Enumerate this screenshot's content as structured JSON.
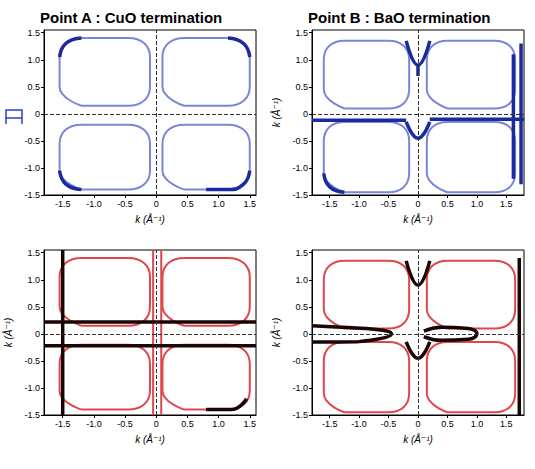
{
  "chart_data": [
    {
      "type": "line",
      "title": "Point A : CuO termination",
      "xlabel": "k (Å⁻¹)",
      "xlim": [
        -1.8,
        1.6
      ],
      "ylim": [
        -1.5,
        1.55
      ],
      "xticks": [
        -1.5,
        {
          "value": -1,
          "label": "-1.0"
        },
        -0.5,
        0,
        0.5,
        {
          "value": 1,
          "label": "1.0"
        },
        1.5
      ],
      "yticks": [
        -1.5,
        {
          "value": -1,
          "label": "-1.0"
        },
        -0.5,
        0,
        0.5,
        {
          "value": 1,
          "label": "1.0"
        },
        1.5
      ],
      "reference_lines": {
        "x": [
          0
        ],
        "y": [
          0
        ]
      },
      "series": [
        {
          "color": "#7a86d8",
          "x": [
            -1.2,
            -0.45,
            -0.1,
            -0.1,
            -0.45,
            -1.2,
            -1.55,
            -1.55,
            -1.2,
            null,
            0.45,
            1.15,
            1.5,
            1.5,
            1.15,
            0.45,
            0.1,
            0.1,
            0.45,
            null,
            -1.2,
            -0.45,
            -0.1,
            -0.1,
            -0.45,
            -1.2,
            -1.55,
            -1.55,
            -1.2,
            null,
            0.45,
            1.15,
            1.5,
            1.5,
            1.15,
            0.45,
            0.1,
            0.1,
            0.45
          ],
          "values": [
            0.15,
            0.15,
            0.5,
            1.05,
            1.4,
            1.4,
            1.05,
            0.5,
            0.15,
            null,
            0.15,
            0.15,
            0.5,
            1.05,
            1.4,
            1.4,
            1.05,
            0.5,
            0.15,
            null,
            -1.4,
            -1.4,
            -1.05,
            -0.55,
            -0.2,
            -0.2,
            -0.55,
            -1.05,
            -1.4,
            null,
            -1.4,
            -1.4,
            -1.05,
            -0.55,
            -0.2,
            -0.2,
            -0.55,
            -1.05,
            -1.4
          ]
        },
        {
          "color": "#1b2a9e",
          "x": [
            -1.2,
            -1.45,
            -1.55,
            null,
            -1.55,
            -1.45,
            -1.2,
            null,
            1.15,
            1.4,
            1.5,
            null,
            0.8,
            1.15,
            1.4,
            1.5
          ],
          "values": [
            1.4,
            1.3,
            1.05,
            null,
            -1.05,
            -1.3,
            -1.4,
            null,
            1.4,
            1.3,
            1.05,
            null,
            -1.4,
            -1.4,
            -1.3,
            -1.05
          ]
        }
      ]
    },
    {
      "type": "line",
      "title": "Point B : BaO termination",
      "xlabel": "k (Å⁻¹)",
      "ylabel": "k (Å⁻¹)",
      "xlim": [
        -1.8,
        1.8
      ],
      "ylim": [
        -1.5,
        1.55
      ],
      "xticks": [
        -1.5,
        {
          "value": -1,
          "label": "-1.0"
        },
        -0.5,
        0,
        0.5,
        {
          "value": 1,
          "label": "1.0"
        },
        1.5
      ],
      "yticks": [
        -1.5,
        {
          "value": -1,
          "label": "-1.0"
        },
        -0.5,
        0,
        0.5,
        {
          "value": 1,
          "label": "1.0"
        },
        1.5
      ],
      "reference_lines": {
        "x": [
          0
        ],
        "y": [
          0
        ]
      },
      "series": [
        {
          "color": "#7a86d8",
          "x": [
            -1.25,
            -0.5,
            -0.15,
            -0.15,
            -0.5,
            -1.25,
            -1.6,
            -1.6,
            -1.25,
            null,
            0.5,
            1.3,
            1.65,
            1.65,
            1.3,
            0.5,
            0.15,
            0.15,
            0.5,
            null,
            -1.25,
            -0.5,
            -0.15,
            -0.15,
            -0.5,
            -1.25,
            -1.6,
            -1.6,
            -1.25,
            null,
            0.5,
            1.3,
            1.65,
            1.65,
            1.3,
            0.5,
            0.15,
            0.15,
            0.5
          ],
          "values": [
            0.1,
            0.1,
            0.45,
            1.0,
            1.35,
            1.35,
            1.0,
            0.45,
            0.1,
            null,
            0.1,
            0.1,
            0.45,
            1.0,
            1.35,
            1.35,
            1.0,
            0.45,
            0.1,
            null,
            -1.45,
            -1.45,
            -1.1,
            -0.5,
            -0.15,
            -0.15,
            -0.5,
            -1.1,
            -1.45,
            null,
            -1.45,
            -1.45,
            -1.1,
            -0.5,
            -0.15,
            -0.15,
            -0.5,
            -1.1,
            -1.45
          ]
        },
        {
          "color": "#1b2a9e",
          "x": [
            -1.8,
            -0.2,
            null,
            0.2,
            1.8,
            null,
            -0.2,
            0,
            0.2,
            null,
            0,
            0,
            null,
            -0.2,
            0,
            0.2,
            null,
            1.62,
            1.62,
            null,
            1.75,
            1.75,
            null,
            -1.6,
            -1.5,
            -1.25
          ],
          "values": [
            -0.12,
            -0.12,
            null,
            -0.1,
            -0.1,
            null,
            1.35,
            0.9,
            1.35,
            null,
            0.9,
            0.7,
            null,
            -0.15,
            -0.45,
            -0.15,
            null,
            -1.2,
            1.1,
            null,
            -1.3,
            1.3,
            null,
            -1.1,
            -1.35,
            -1.45
          ]
        }
      ]
    },
    {
      "type": "line",
      "xlabel": "k (Å⁻¹)",
      "ylabel": "k (Å⁻¹)",
      "xlim": [
        -1.8,
        1.6
      ],
      "ylim": [
        -1.5,
        1.55
      ],
      "xticks": [
        -1.5,
        {
          "value": -1,
          "label": "-1.0"
        },
        -0.5,
        0,
        0.5,
        {
          "value": 1,
          "label": "1.0"
        },
        1.5
      ],
      "yticks": [
        -1.5,
        {
          "value": -1,
          "label": "-1.0"
        },
        -0.5,
        0,
        0.5,
        {
          "value": 1,
          "label": "1.0"
        },
        1.5
      ],
      "reference_lines": {
        "x": [
          0
        ],
        "y": [
          0
        ]
      },
      "series": [
        {
          "color": "#e0474c",
          "x": [
            -1.2,
            -0.45,
            -0.1,
            -0.1,
            -0.45,
            -1.2,
            -1.55,
            -1.55,
            -1.2,
            null,
            0.45,
            1.15,
            1.5,
            1.5,
            1.15,
            0.45,
            0.1,
            0.1,
            0.45,
            null,
            -1.2,
            -0.45,
            -0.1,
            -0.1,
            -0.45,
            -1.2,
            -1.55,
            -1.55,
            -1.2,
            null,
            0.45,
            1.15,
            1.5,
            1.5,
            1.15,
            0.45,
            0.1,
            0.1,
            0.45,
            null,
            -0.05,
            -0.05,
            null,
            0.08,
            0.08
          ],
          "values": [
            0.15,
            0.15,
            0.5,
            1.05,
            1.4,
            1.4,
            1.05,
            0.5,
            0.15,
            null,
            0.15,
            0.15,
            0.5,
            1.05,
            1.4,
            1.4,
            1.05,
            0.5,
            0.15,
            null,
            -1.4,
            -1.4,
            -1.05,
            -0.55,
            -0.2,
            -0.2,
            -0.55,
            -1.05,
            -1.4,
            null,
            -1.4,
            -1.4,
            -1.05,
            -0.55,
            -0.2,
            -0.2,
            -0.55,
            -1.05,
            -1.4,
            null,
            -1.5,
            1.55,
            null,
            -1.5,
            1.55
          ]
        },
        {
          "color": "#1a0505",
          "x": [
            -1.8,
            1.6,
            null,
            -1.8,
            1.6,
            null,
            -1.5,
            -1.5,
            null,
            0.8,
            1.2,
            1.45
          ],
          "values": [
            0.22,
            0.22,
            null,
            -0.22,
            -0.22,
            null,
            -1.5,
            1.55,
            null,
            -1.4,
            -1.4,
            -1.2
          ]
        }
      ]
    },
    {
      "type": "line",
      "xlabel": "k (Å⁻¹)",
      "ylabel": "k (Å⁻¹)",
      "xlim": [
        -1.8,
        1.8
      ],
      "ylim": [
        -1.5,
        1.55
      ],
      "xticks": [
        -1.5,
        {
          "value": -1,
          "label": "-1.0"
        },
        -0.5,
        0,
        0.5,
        {
          "value": 1,
          "label": "1.0"
        },
        1.5
      ],
      "yticks": [
        -1.5,
        {
          "value": -1,
          "label": "-1.0"
        },
        -0.5,
        0,
        0.5,
        {
          "value": 1,
          "label": "1.0"
        },
        1.5
      ],
      "reference_lines": {
        "x": [
          0
        ],
        "y": [
          0
        ]
      },
      "series": [
        {
          "color": "#e0474c",
          "x": [
            -1.25,
            -0.5,
            -0.15,
            -0.15,
            -0.5,
            -1.25,
            -1.6,
            -1.6,
            -1.25,
            null,
            0.5,
            1.3,
            1.65,
            1.65,
            1.3,
            0.5,
            0.15,
            0.15,
            0.5,
            null,
            -1.25,
            -0.5,
            -0.15,
            -0.15,
            -0.5,
            -1.25,
            -1.6,
            -1.6,
            -1.25,
            null,
            0.5,
            1.3,
            1.65,
            1.65,
            1.3,
            0.5,
            0.15,
            0.15,
            0.5
          ],
          "values": [
            0.1,
            0.1,
            0.45,
            1.0,
            1.35,
            1.35,
            1.0,
            0.45,
            0.1,
            null,
            0.1,
            0.1,
            0.45,
            1.0,
            1.35,
            1.35,
            1.0,
            0.45,
            0.1,
            null,
            -1.45,
            -1.45,
            -1.1,
            -0.5,
            -0.15,
            -0.15,
            -0.5,
            -1.1,
            -1.45,
            null,
            -1.45,
            -1.45,
            -1.1,
            -0.5,
            -0.15,
            -0.15,
            -0.5,
            -1.1,
            -1.45
          ]
        },
        {
          "color": "#1a0505",
          "x": [
            -1.8,
            -1.3,
            -0.7,
            -0.45,
            -0.7,
            -1.3,
            -1.8,
            null,
            0.1,
            0.4,
            0.85,
            1.0,
            0.85,
            0.4,
            0.1,
            null,
            1.72,
            1.72,
            null,
            -0.2,
            0,
            0.2,
            null,
            -0.2,
            0,
            0.2
          ],
          "values": [
            0.15,
            0.12,
            0.08,
            0,
            -0.1,
            -0.15,
            -0.15,
            null,
            0.05,
            0.12,
            0.1,
            0,
            -0.1,
            -0.12,
            -0.05,
            null,
            -1.5,
            1.4,
            null,
            1.35,
            0.9,
            1.35,
            null,
            -0.15,
            -0.45,
            -0.15
          ]
        }
      ]
    }
  ]
}
